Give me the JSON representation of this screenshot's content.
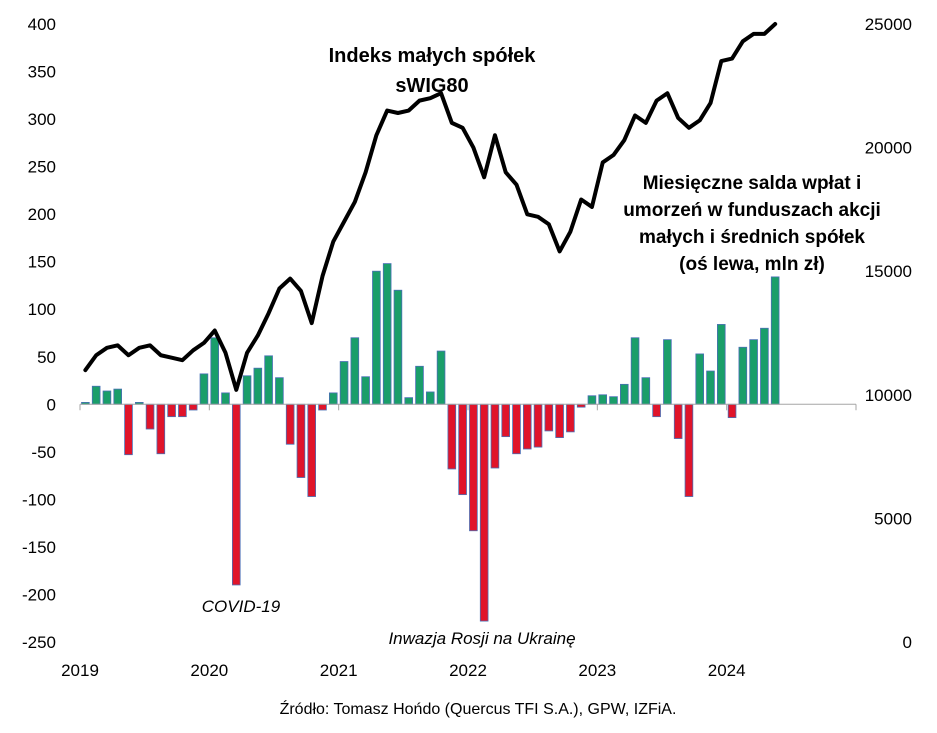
{
  "chart_data": {
    "type": "bar+line",
    "title_lines": [
      "Indeks małych spółek",
      "sWIG80"
    ],
    "bar_annotation_lines": [
      "Miesięczne salda wpłat i",
      "umorzeń w funduszach akcji",
      "małych i średnich spółek",
      "(oś lewa, mln zł)"
    ],
    "annotations": [
      {
        "id": "covid",
        "text": "COVID-19"
      },
      {
        "id": "ukraine",
        "text": "Inwazja Rosji na Ukrainę"
      }
    ],
    "source": "Źródło: Tomasz Hońdo (Quercus TFI S.A.), GPW, IZFiA.",
    "x_tick_labels": [
      "2019",
      "2020",
      "2021",
      "2022",
      "2023",
      "2024"
    ],
    "x_tick_month_index": [
      0,
      12,
      24,
      36,
      48,
      60
    ],
    "months_span": 72,
    "left_axis": {
      "min": -250,
      "max": 400,
      "ticks": [
        400,
        350,
        300,
        250,
        200,
        150,
        100,
        50,
        0,
        -50,
        -100,
        -150,
        -200,
        -250
      ]
    },
    "right_axis": {
      "min": 0,
      "max": 25000,
      "ticks": [
        25000,
        20000,
        15000,
        10000,
        5000,
        0
      ]
    },
    "colors": {
      "positive": "#1a9e6a",
      "negative": "#e0142a",
      "bar_edge": "#4a6fb5",
      "line": "#000000",
      "axis": "#a6a6a6"
    },
    "bar_series": {
      "name": "Miesięczne salda wpłat i umorzeń w funduszach akcji małych i średnich spółek",
      "values": [
        2,
        19,
        14,
        16,
        -53,
        2,
        -26,
        -52,
        -13,
        -13,
        -6,
        32,
        70,
        12,
        -190,
        30,
        38,
        51,
        28,
        -42,
        -77,
        -97,
        -6,
        12,
        45,
        70,
        29,
        140,
        148,
        120,
        7,
        40,
        13,
        56,
        -68,
        -95,
        -133,
        -228,
        -67,
        -34,
        -52,
        -47,
        -45,
        -28,
        -35,
        -29,
        -3,
        9,
        10,
        8,
        21,
        70,
        28,
        -13,
        68,
        -36,
        -97,
        53,
        35,
        84,
        -14,
        60,
        68,
        80,
        134
      ]
    },
    "line_series": {
      "name": "sWIG80",
      "values": [
        11000,
        11600,
        11900,
        12000,
        11600,
        11900,
        12000,
        11600,
        11500,
        11400,
        11800,
        12100,
        12600,
        11700,
        10200,
        11700,
        12400,
        13300,
        14300,
        14700,
        14200,
        12900,
        14800,
        16200,
        17000,
        17800,
        19000,
        20500,
        21500,
        21400,
        21500,
        21900,
        22000,
        22200,
        21000,
        20800,
        20000,
        18800,
        20500,
        19000,
        18500,
        17300,
        17200,
        16900,
        15800,
        16600,
        17900,
        17600,
        19400,
        19700,
        20300,
        21300,
        21000,
        21900,
        22200,
        21200,
        20800,
        21100,
        21800,
        23500,
        23600,
        24300,
        24600,
        24600,
        25000
      ]
    }
  }
}
